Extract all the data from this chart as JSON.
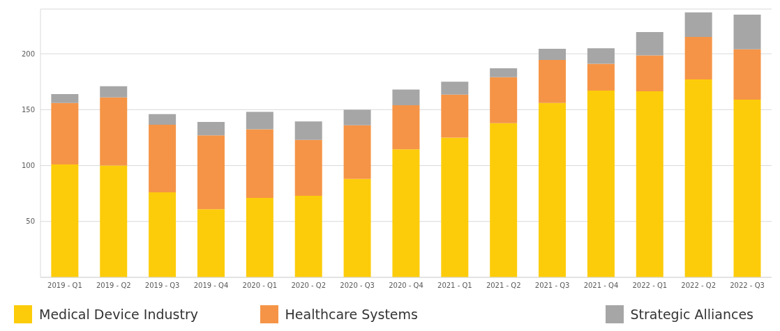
{
  "chart_data": {
    "type": "bar",
    "stacked": true,
    "categories": [
      "2019 - Q1",
      "2019 - Q2",
      "2019 - Q3",
      "2019 - Q4",
      "2020 - Q1",
      "2020 - Q2",
      "2020 - Q3",
      "2020 - Q4",
      "2021 - Q1",
      "2021 - Q2",
      "2021 - Q3",
      "2021 - Q4",
      "2022 - Q1",
      "2022 - Q2",
      "2022 - Q3"
    ],
    "series": [
      {
        "name": "Medical Device Industry",
        "color": "#fccc0a",
        "values": [
          101,
          100,
          76,
          61,
          71,
          73,
          88,
          114.5,
          125,
          138,
          156,
          167,
          166.5,
          177,
          159
        ]
      },
      {
        "name": "Healthcare Systems",
        "color": "#f59446",
        "values": [
          55,
          61,
          60.5,
          66,
          61.5,
          50,
          48,
          39.5,
          38.5,
          41,
          38.5,
          24,
          32,
          38,
          45
        ]
      },
      {
        "name": "Strategic Alliances",
        "color": "#a6a6a6",
        "values": [
          8,
          10,
          9.5,
          12,
          15.5,
          16.5,
          14,
          14,
          11.5,
          8,
          10,
          14,
          21,
          22,
          31
        ]
      }
    ],
    "ylim": [
      0,
      240
    ],
    "yticks": [
      50,
      100,
      150,
      200
    ],
    "grid": "y",
    "legend": "bottom"
  }
}
